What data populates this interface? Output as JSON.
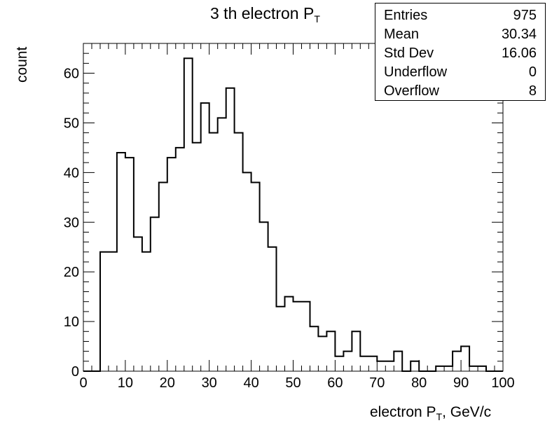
{
  "chart_data": {
    "type": "bar",
    "title_main": "3 th electron P",
    "title_sub": "T",
    "ylabel": "count",
    "xlabel_main": "electron P",
    "xlabel_sub": "T",
    "xlabel_tail": ", GeV/c",
    "xlim": [
      0,
      100
    ],
    "ylim": [
      0,
      66
    ],
    "xticks": [
      0,
      10,
      20,
      30,
      40,
      50,
      60,
      70,
      80,
      90,
      100
    ],
    "yticks": [
      0,
      10,
      20,
      30,
      40,
      50,
      60
    ],
    "bin_width": 2,
    "values": [
      0,
      0,
      24,
      24,
      44,
      43,
      27,
      24,
      31,
      38,
      43,
      45,
      63,
      46,
      54,
      48,
      51,
      57,
      48,
      40,
      38,
      30,
      25,
      13,
      15,
      14,
      14,
      9,
      7,
      8,
      3,
      4,
      8,
      3,
      3,
      2,
      2,
      4,
      0,
      2,
      0,
      0,
      1,
      1,
      4,
      5,
      1,
      1,
      0,
      0
    ]
  },
  "stats": {
    "rows": [
      {
        "label": "Entries",
        "value": "975"
      },
      {
        "label": "Mean",
        "value": "30.34"
      },
      {
        "label": "Std Dev",
        "value": "16.06"
      },
      {
        "label": "Underflow",
        "value": "0"
      },
      {
        "label": "Overflow",
        "value": "8"
      }
    ]
  }
}
